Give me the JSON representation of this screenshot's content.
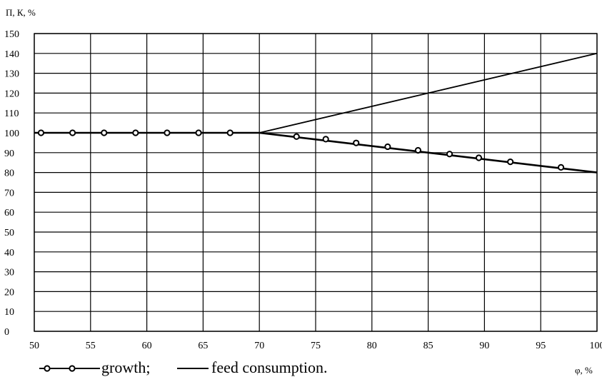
{
  "chart_data": {
    "type": "line",
    "title": "",
    "ylabel": "П, К, %",
    "xlabel": "φ, %",
    "xlim": [
      50,
      100
    ],
    "ylim": [
      0,
      150
    ],
    "x_ticks": [
      "50",
      "55",
      "60",
      "65",
      "70",
      "75",
      "80",
      "85",
      "90",
      "95",
      "100"
    ],
    "y_ticks": [
      "0",
      "10",
      "20",
      "30",
      "40",
      "50",
      "60",
      "70",
      "80",
      "90",
      "100",
      "110",
      "120",
      "130",
      "140",
      "150"
    ],
    "grid": true,
    "legend_position": "bottom",
    "series": [
      {
        "name": "growth;",
        "marker": "open-circle",
        "line": [
          {
            "x": 50,
            "y": 100
          },
          {
            "x": 70,
            "y": 100
          },
          {
            "x": 100,
            "y": 80
          }
        ],
        "markers": [
          {
            "x": 50.6,
            "y": 100
          },
          {
            "x": 53.4,
            "y": 100
          },
          {
            "x": 56.2,
            "y": 100
          },
          {
            "x": 59.0,
            "y": 100
          },
          {
            "x": 61.8,
            "y": 100
          },
          {
            "x": 64.6,
            "y": 100
          },
          {
            "x": 67.4,
            "y": 100
          },
          {
            "x": 73.3,
            "y": 98.1
          },
          {
            "x": 75.9,
            "y": 96.8
          },
          {
            "x": 78.6,
            "y": 94.9
          },
          {
            "x": 81.4,
            "y": 93.0
          },
          {
            "x": 84.1,
            "y": 91.2
          },
          {
            "x": 86.9,
            "y": 89.3
          },
          {
            "x": 89.5,
            "y": 87.4
          },
          {
            "x": 92.3,
            "y": 85.4
          },
          {
            "x": 96.8,
            "y": 82.6
          }
        ]
      },
      {
        "name": "feed consumption.",
        "marker": "none",
        "line": [
          {
            "x": 50,
            "y": 100
          },
          {
            "x": 70,
            "y": 100
          },
          {
            "x": 100,
            "y": 140
          }
        ],
        "markers": []
      }
    ]
  },
  "colors": {
    "line": "#000000",
    "grid": "#000000",
    "background": "#ffffff"
  }
}
